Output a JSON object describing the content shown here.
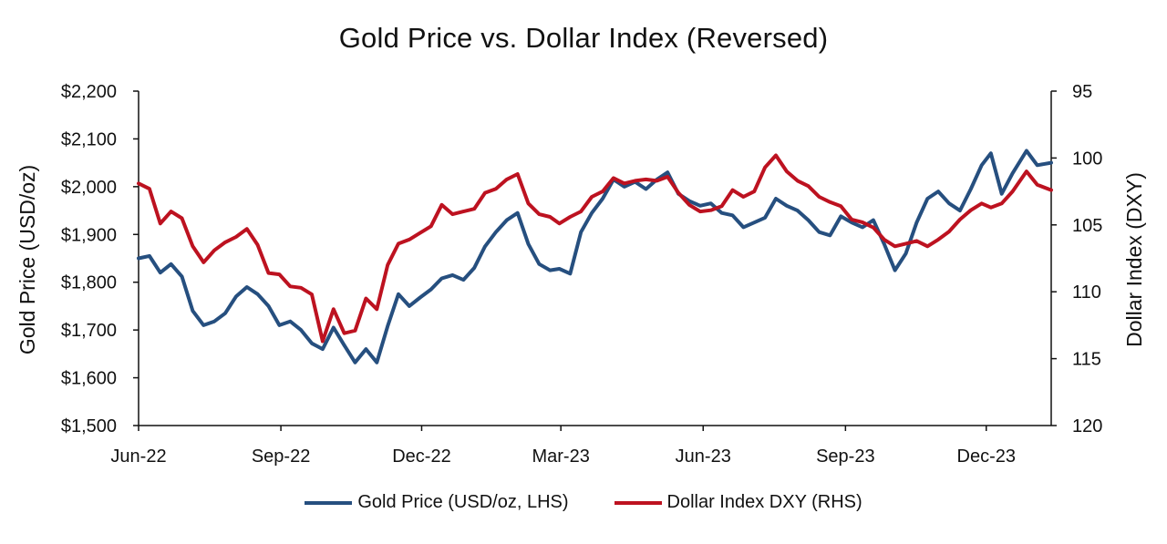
{
  "chart_data": {
    "type": "line",
    "title": "Gold Price vs. Dollar Index (Reversed)",
    "xlabel": "",
    "ylabel_left": "Gold Price (USD/oz)",
    "ylabel_right": "Dollar Index (DXY)",
    "x_range": [
      "2022-06-01",
      "2024-01-12"
    ],
    "x_ticks": [
      {
        "date": "2022-06-01",
        "label": "Jun-22"
      },
      {
        "date": "2022-09-01",
        "label": "Sep-22"
      },
      {
        "date": "2022-12-01",
        "label": "Dec-22"
      },
      {
        "date": "2023-03-01",
        "label": "Mar-23"
      },
      {
        "date": "2023-06-01",
        "label": "Jun-23"
      },
      {
        "date": "2023-09-01",
        "label": "Sep-23"
      },
      {
        "date": "2023-12-01",
        "label": "Dec-23"
      }
    ],
    "y_left": {
      "min": 1500,
      "max": 2200,
      "ticks": [
        {
          "value": 2200,
          "label": "$2,200"
        },
        {
          "value": 2100,
          "label": "$2,100"
        },
        {
          "value": 2000,
          "label": "$2,000"
        },
        {
          "value": 1900,
          "label": "$1,900"
        },
        {
          "value": 1800,
          "label": "$1,800"
        },
        {
          "value": 1700,
          "label": "$1,700"
        },
        {
          "value": 1600,
          "label": "$1,600"
        },
        {
          "value": 1500,
          "label": "$1,500"
        }
      ]
    },
    "y_right": {
      "min": 95,
      "max": 120,
      "reversed": true,
      "ticks": [
        {
          "value": 95,
          "label": "95"
        },
        {
          "value": 100,
          "label": "100"
        },
        {
          "value": 105,
          "label": "105"
        },
        {
          "value": 110,
          "label": "110"
        },
        {
          "value": 115,
          "label": "115"
        },
        {
          "value": 120,
          "label": "120"
        }
      ]
    },
    "grid": false,
    "legend_position": "bottom",
    "series": [
      {
        "name": "Gold Price (USD/oz, LHS)",
        "axis": "left",
        "color": "#264f7f",
        "points": [
          [
            "2022-06-01",
            1850
          ],
          [
            "2022-06-08",
            1855
          ],
          [
            "2022-06-15",
            1820
          ],
          [
            "2022-06-22",
            1838
          ],
          [
            "2022-06-29",
            1812
          ],
          [
            "2022-07-06",
            1740
          ],
          [
            "2022-07-13",
            1710
          ],
          [
            "2022-07-20",
            1718
          ],
          [
            "2022-07-27",
            1735
          ],
          [
            "2022-08-03",
            1770
          ],
          [
            "2022-08-10",
            1790
          ],
          [
            "2022-08-17",
            1775
          ],
          [
            "2022-08-24",
            1750
          ],
          [
            "2022-08-31",
            1710
          ],
          [
            "2022-09-07",
            1718
          ],
          [
            "2022-09-14",
            1700
          ],
          [
            "2022-09-21",
            1672
          ],
          [
            "2022-09-28",
            1660
          ],
          [
            "2022-10-05",
            1705
          ],
          [
            "2022-10-12",
            1668
          ],
          [
            "2022-10-19",
            1632
          ],
          [
            "2022-10-26",
            1660
          ],
          [
            "2022-11-02",
            1632
          ],
          [
            "2022-11-09",
            1708
          ],
          [
            "2022-11-16",
            1775
          ],
          [
            "2022-11-23",
            1750
          ],
          [
            "2022-11-30",
            1768
          ],
          [
            "2022-12-07",
            1785
          ],
          [
            "2022-12-14",
            1808
          ],
          [
            "2022-12-21",
            1815
          ],
          [
            "2022-12-28",
            1805
          ],
          [
            "2023-01-04",
            1830
          ],
          [
            "2023-01-11",
            1875
          ],
          [
            "2023-01-18",
            1905
          ],
          [
            "2023-01-25",
            1930
          ],
          [
            "2023-02-01",
            1945
          ],
          [
            "2023-02-08",
            1880
          ],
          [
            "2023-02-15",
            1838
          ],
          [
            "2023-02-22",
            1825
          ],
          [
            "2023-02-28",
            1828
          ],
          [
            "2023-03-07",
            1818
          ],
          [
            "2023-03-14",
            1905
          ],
          [
            "2023-03-21",
            1945
          ],
          [
            "2023-03-28",
            1975
          ],
          [
            "2023-04-04",
            2015
          ],
          [
            "2023-04-11",
            2000
          ],
          [
            "2023-04-18",
            2010
          ],
          [
            "2023-04-25",
            1995
          ],
          [
            "2023-05-02",
            2015
          ],
          [
            "2023-05-09",
            2030
          ],
          [
            "2023-05-16",
            1985
          ],
          [
            "2023-05-23",
            1970
          ],
          [
            "2023-05-30",
            1960
          ],
          [
            "2023-06-06",
            1965
          ],
          [
            "2023-06-13",
            1945
          ],
          [
            "2023-06-20",
            1940
          ],
          [
            "2023-06-27",
            1915
          ],
          [
            "2023-07-04",
            1925
          ],
          [
            "2023-07-11",
            1935
          ],
          [
            "2023-07-18",
            1975
          ],
          [
            "2023-07-25",
            1960
          ],
          [
            "2023-08-01",
            1950
          ],
          [
            "2023-08-08",
            1930
          ],
          [
            "2023-08-15",
            1905
          ],
          [
            "2023-08-22",
            1898
          ],
          [
            "2023-08-29",
            1938
          ],
          [
            "2023-09-05",
            1925
          ],
          [
            "2023-09-12",
            1915
          ],
          [
            "2023-09-19",
            1930
          ],
          [
            "2023-09-26",
            1880
          ],
          [
            "2023-10-03",
            1825
          ],
          [
            "2023-10-10",
            1860
          ],
          [
            "2023-10-17",
            1925
          ],
          [
            "2023-10-24",
            1975
          ],
          [
            "2023-10-31",
            1990
          ],
          [
            "2023-11-07",
            1965
          ],
          [
            "2023-11-14",
            1950
          ],
          [
            "2023-11-21",
            1995
          ],
          [
            "2023-11-28",
            2045
          ],
          [
            "2023-12-04",
            2070
          ],
          [
            "2023-12-11",
            1985
          ],
          [
            "2023-12-18",
            2028
          ],
          [
            "2023-12-27",
            2075
          ],
          [
            "2024-01-03",
            2045
          ],
          [
            "2024-01-12",
            2050
          ]
        ]
      },
      {
        "name": "Dollar Index DXY (RHS)",
        "axis": "right",
        "color": "#bd1220",
        "points": [
          [
            "2022-06-01",
            101.9
          ],
          [
            "2022-06-08",
            102.3
          ],
          [
            "2022-06-15",
            104.9
          ],
          [
            "2022-06-22",
            104.0
          ],
          [
            "2022-06-29",
            104.5
          ],
          [
            "2022-07-06",
            106.6
          ],
          [
            "2022-07-13",
            107.8
          ],
          [
            "2022-07-20",
            106.9
          ],
          [
            "2022-07-27",
            106.3
          ],
          [
            "2022-08-03",
            105.9
          ],
          [
            "2022-08-10",
            105.3
          ],
          [
            "2022-08-17",
            106.5
          ],
          [
            "2022-08-24",
            108.6
          ],
          [
            "2022-08-31",
            108.7
          ],
          [
            "2022-09-07",
            109.6
          ],
          [
            "2022-09-14",
            109.7
          ],
          [
            "2022-09-21",
            110.2
          ],
          [
            "2022-09-28",
            113.7
          ],
          [
            "2022-10-05",
            111.3
          ],
          [
            "2022-10-12",
            113.1
          ],
          [
            "2022-10-19",
            112.9
          ],
          [
            "2022-10-26",
            110.5
          ],
          [
            "2022-11-02",
            111.3
          ],
          [
            "2022-11-09",
            108.0
          ],
          [
            "2022-11-16",
            106.4
          ],
          [
            "2022-11-23",
            106.1
          ],
          [
            "2022-11-30",
            105.6
          ],
          [
            "2022-12-07",
            105.1
          ],
          [
            "2022-12-14",
            103.5
          ],
          [
            "2022-12-21",
            104.2
          ],
          [
            "2022-12-28",
            104.0
          ],
          [
            "2023-01-04",
            103.8
          ],
          [
            "2023-01-11",
            102.6
          ],
          [
            "2023-01-18",
            102.3
          ],
          [
            "2023-01-25",
            101.6
          ],
          [
            "2023-02-01",
            101.2
          ],
          [
            "2023-02-08",
            103.4
          ],
          [
            "2023-02-15",
            104.2
          ],
          [
            "2023-02-22",
            104.4
          ],
          [
            "2023-02-28",
            104.9
          ],
          [
            "2023-03-07",
            104.4
          ],
          [
            "2023-03-14",
            104.0
          ],
          [
            "2023-03-21",
            102.9
          ],
          [
            "2023-03-28",
            102.5
          ],
          [
            "2023-04-04",
            101.5
          ],
          [
            "2023-04-11",
            101.9
          ],
          [
            "2023-04-18",
            101.7
          ],
          [
            "2023-04-25",
            101.6
          ],
          [
            "2023-05-02",
            101.7
          ],
          [
            "2023-05-09",
            101.4
          ],
          [
            "2023-05-16",
            102.6
          ],
          [
            "2023-05-23",
            103.5
          ],
          [
            "2023-05-30",
            104.0
          ],
          [
            "2023-06-06",
            103.9
          ],
          [
            "2023-06-13",
            103.6
          ],
          [
            "2023-06-20",
            102.4
          ],
          [
            "2023-06-27",
            102.9
          ],
          [
            "2023-07-04",
            102.5
          ],
          [
            "2023-07-11",
            100.7
          ],
          [
            "2023-07-18",
            99.8
          ],
          [
            "2023-07-25",
            101.0
          ],
          [
            "2023-08-01",
            101.7
          ],
          [
            "2023-08-08",
            102.1
          ],
          [
            "2023-08-15",
            102.9
          ],
          [
            "2023-08-22",
            103.3
          ],
          [
            "2023-08-29",
            103.6
          ],
          [
            "2023-09-05",
            104.6
          ],
          [
            "2023-09-12",
            104.8
          ],
          [
            "2023-09-19",
            105.2
          ],
          [
            "2023-09-26",
            106.1
          ],
          [
            "2023-10-03",
            106.6
          ],
          [
            "2023-10-10",
            106.4
          ],
          [
            "2023-10-17",
            106.2
          ],
          [
            "2023-10-24",
            106.6
          ],
          [
            "2023-10-31",
            106.1
          ],
          [
            "2023-11-07",
            105.5
          ],
          [
            "2023-11-14",
            104.6
          ],
          [
            "2023-11-21",
            103.9
          ],
          [
            "2023-11-28",
            103.4
          ],
          [
            "2023-12-04",
            103.7
          ],
          [
            "2023-12-11",
            103.4
          ],
          [
            "2023-12-18",
            102.5
          ],
          [
            "2023-12-27",
            101.0
          ],
          [
            "2024-01-03",
            102.0
          ],
          [
            "2024-01-12",
            102.4
          ]
        ]
      }
    ]
  }
}
